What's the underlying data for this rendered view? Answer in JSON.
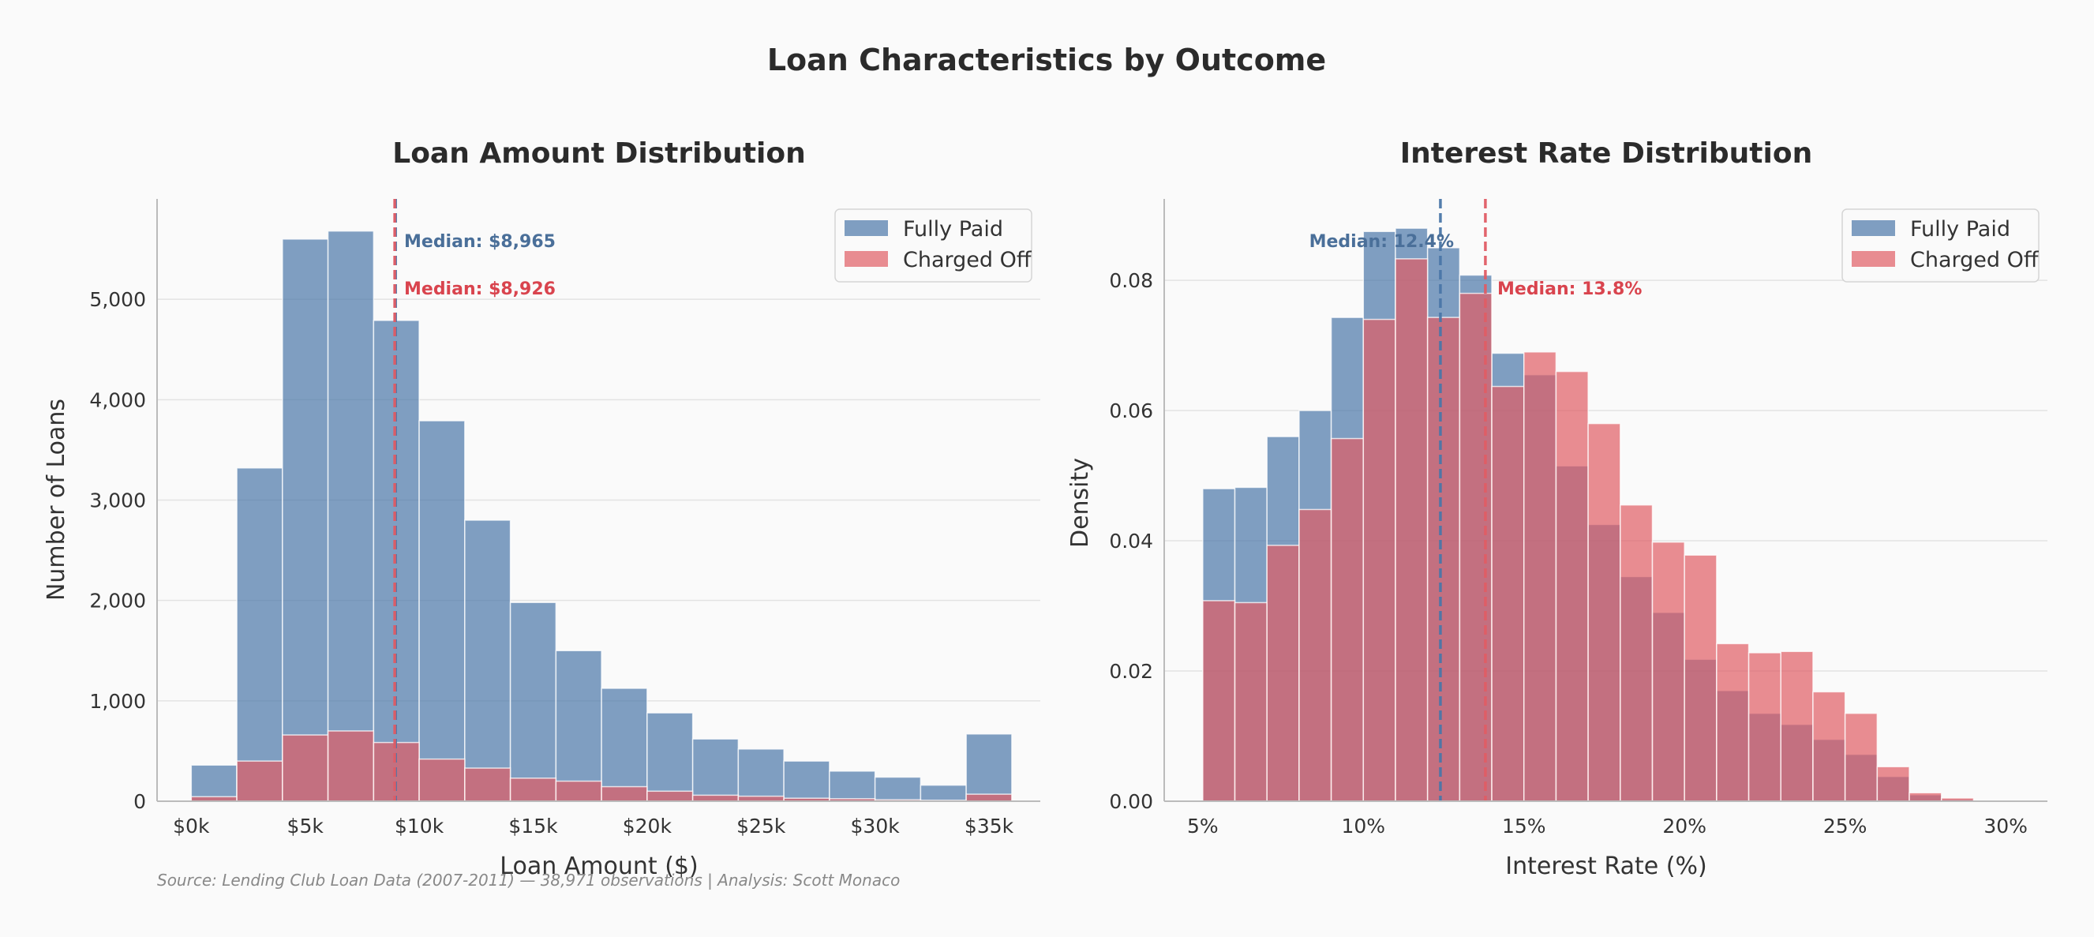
{
  "figure": {
    "title": "Loan Characteristics by Outcome",
    "source": "Source: Lending Club Loan Data (2007-2011) — 38,971 observations | Analysis: Scott Monaco"
  },
  "colors": {
    "fully_paid": "#4a76a8",
    "charged_off": "#e05c64",
    "fully_paid_text": "#4a6f99",
    "charged_off_text": "#d9444e",
    "grid": "#e3e3e3",
    "axis": "#bbbbbb"
  },
  "chart_data": [
    {
      "type": "bar",
      "title": "Loan Amount Distribution",
      "xlabel": "Loan Amount ($)",
      "ylabel": "Number of Loans",
      "xlim": [
        -1500,
        37250
      ],
      "ylim": [
        0,
        6000
      ],
      "xticks": [
        0,
        5000,
        10000,
        15000,
        20000,
        25000,
        30000,
        35000
      ],
      "xtick_labels": [
        "$0k",
        "$5k",
        "$10k",
        "$15k",
        "$20k",
        "$25k",
        "$30k",
        "$35k"
      ],
      "yticks": [
        0,
        1000,
        2000,
        3000,
        4000,
        5000
      ],
      "ytick_labels": [
        "0",
        "1,000",
        "2,000",
        "3,000",
        "4,000",
        "5,000"
      ],
      "grid": "horizontal",
      "legend_position": "top-right",
      "bin_edges": [
        0,
        2000,
        4000,
        6000,
        8000,
        10000,
        12000,
        14000,
        16000,
        18000,
        20000,
        22000,
        24000,
        26000,
        28000,
        30000,
        32000,
        34000,
        36000
      ],
      "series": [
        {
          "name": "Fully Paid",
          "color": "#4a76a8",
          "values": [
            360,
            3320,
            5600,
            5680,
            4790,
            3790,
            2800,
            1980,
            1500,
            1125,
            880,
            620,
            520,
            400,
            300,
            240,
            160,
            670
          ]
        },
        {
          "name": "Charged Off",
          "color": "#e05c64",
          "values": [
            45,
            400,
            660,
            700,
            585,
            420,
            330,
            230,
            200,
            145,
            100,
            60,
            50,
            30,
            25,
            15,
            10,
            70
          ]
        }
      ],
      "medians": [
        {
          "value": 8965,
          "label": "Median: $8,965",
          "series": "Fully Paid"
        },
        {
          "value": 8926,
          "label": "Median: $8,926",
          "series": "Charged Off"
        }
      ]
    },
    {
      "type": "bar",
      "title": "Interest Rate Distribution",
      "xlabel": "Interest Rate (%)",
      "ylabel": "Density",
      "xlim": [
        3.8,
        31.3
      ],
      "ylim": [
        0,
        0.0925
      ],
      "xticks": [
        5,
        10,
        15,
        20,
        25,
        30
      ],
      "xtick_labels": [
        "5%",
        "10%",
        "15%",
        "20%",
        "25%",
        "30%"
      ],
      "yticks": [
        0,
        0.02,
        0.04,
        0.06,
        0.08
      ],
      "ytick_labels": [
        "0.00",
        "0.02",
        "0.04",
        "0.06",
        "0.08"
      ],
      "grid": "horizontal",
      "legend_position": "top-right",
      "bin_edges": [
        5,
        6,
        7,
        8,
        9,
        10,
        11,
        12,
        13,
        14,
        15,
        16,
        17,
        18,
        19,
        20,
        21,
        22,
        23,
        24,
        25,
        26,
        27,
        28,
        29
      ],
      "series": [
        {
          "name": "Fully Paid",
          "color": "#4a76a8",
          "values": [
            0.048,
            0.0482,
            0.056,
            0.06,
            0.0743,
            0.0875,
            0.088,
            0.085,
            0.0808,
            0.0688,
            0.0655,
            0.0515,
            0.0425,
            0.0345,
            0.029,
            0.0218,
            0.017,
            0.0135,
            0.0118,
            0.0095,
            0.0072,
            0.0038,
            0.001,
            0.0003
          ]
        },
        {
          "name": "Charged Off",
          "color": "#e05c64",
          "values": [
            0.0308,
            0.0305,
            0.0393,
            0.0448,
            0.0557,
            0.074,
            0.0833,
            0.0743,
            0.078,
            0.0637,
            0.069,
            0.066,
            0.058,
            0.0455,
            0.0398,
            0.0378,
            0.0242,
            0.0228,
            0.023,
            0.0168,
            0.0135,
            0.0053,
            0.0013,
            0.0005
          ]
        }
      ],
      "medians": [
        {
          "value": 12.4,
          "label": "Median: 12.4%",
          "series": "Fully Paid"
        },
        {
          "value": 13.8,
          "label": "Median: 13.8%",
          "series": "Charged Off"
        }
      ]
    }
  ]
}
